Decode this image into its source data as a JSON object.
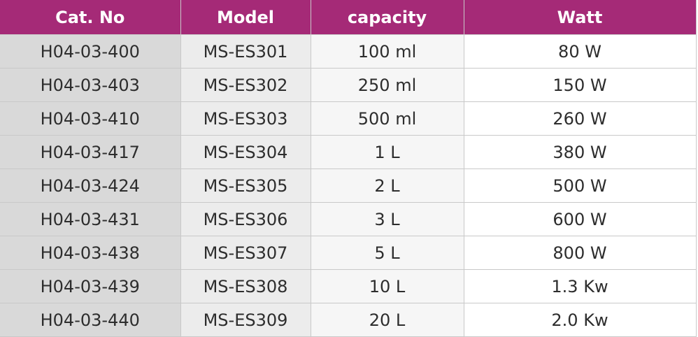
{
  "table": {
    "headers": [
      "Cat. No",
      "Model",
      "capacity",
      "Watt"
    ],
    "rows": [
      [
        "H04-03-400",
        "MS-ES301",
        "100 ml",
        "80 W"
      ],
      [
        "H04-03-403",
        "MS-ES302",
        "250 ml",
        "150 W"
      ],
      [
        "H04-03-410",
        "MS-ES303",
        "500 ml",
        "260 W"
      ],
      [
        "H04-03-417",
        "MS-ES304",
        "1 L",
        "380 W"
      ],
      [
        "H04-03-424",
        "MS-ES305",
        "2 L",
        "500 W"
      ],
      [
        "H04-03-431",
        "MS-ES306",
        "3 L",
        "600 W"
      ],
      [
        "H04-03-438",
        "MS-ES307",
        "5 L",
        "800 W"
      ],
      [
        "H04-03-439",
        "MS-ES308",
        "10 L",
        "1.3 Kw"
      ],
      [
        "H04-03-440",
        "MS-ES309",
        "20 L",
        "2.0 Kw"
      ]
    ]
  },
  "colors": {
    "header_bg": "#a52a77",
    "header_text": "#ffffff",
    "col1_bg": "#d9d9d9",
    "col2_bg": "#ececec",
    "col3_bg": "#f6f6f6",
    "col4_bg": "#ffffff"
  }
}
